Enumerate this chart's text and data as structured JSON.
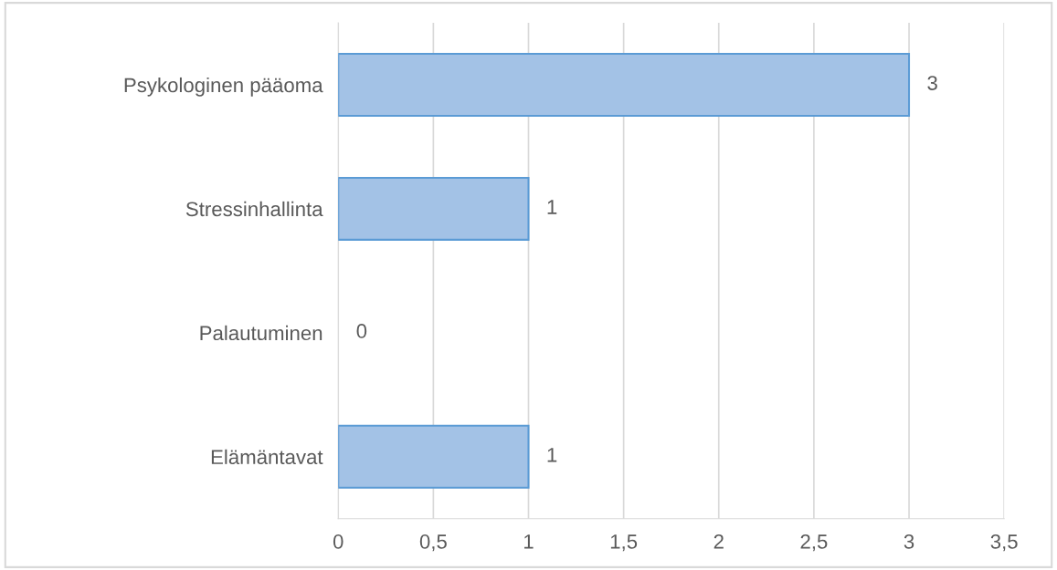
{
  "chart_data": {
    "type": "bar",
    "orientation": "horizontal",
    "categories": [
      "Psykologinen pääoma",
      "Stressinhallinta",
      "Palautuminen",
      "Elämäntavat"
    ],
    "values": [
      3,
      1,
      0,
      1
    ],
    "color": "#a3c2e6",
    "xlim": [
      0,
      3.5
    ],
    "xticks": [
      0,
      {
        "value": 0.5,
        "label": "0,5"
      },
      1,
      {
        "value": 1.5,
        "label": "1,5"
      },
      2,
      {
        "value": 2.5,
        "label": "2,5"
      },
      3,
      {
        "value": 3.5,
        "label": "3,5"
      }
    ],
    "grid": "x",
    "data_labels": true,
    "legend": false
  }
}
